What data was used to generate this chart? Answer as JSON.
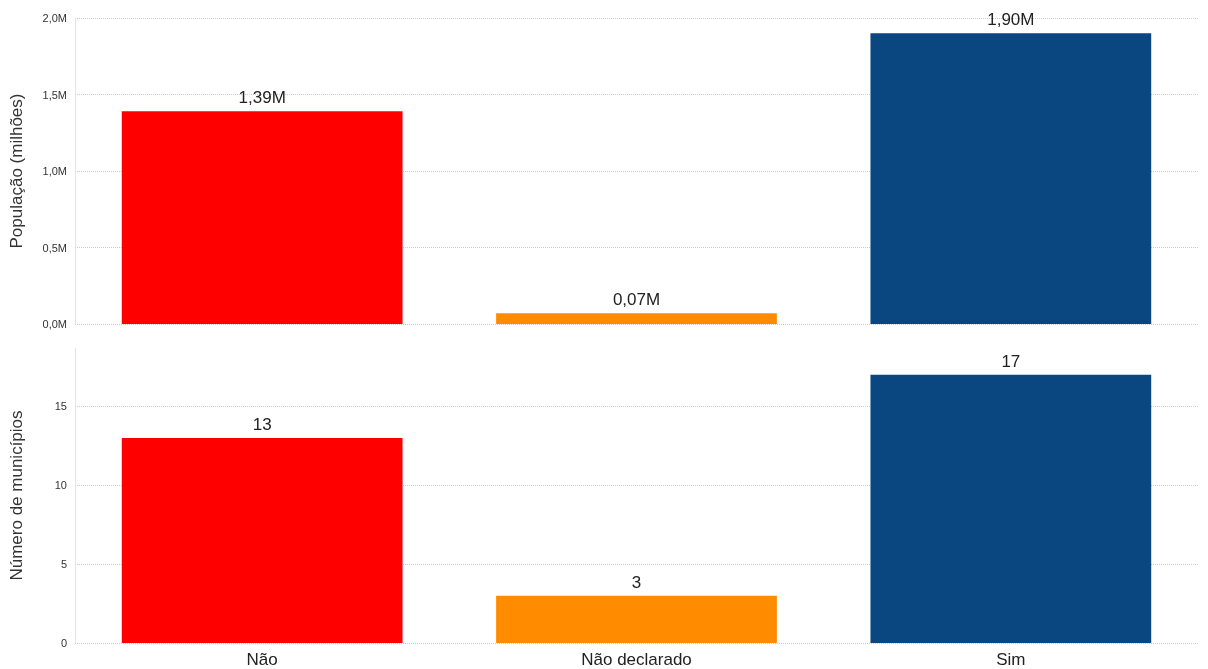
{
  "chart_data": [
    {
      "type": "bar",
      "ylabel": "População (milhões)",
      "categories": [
        null,
        null,
        null
      ],
      "values": [
        1.39,
        0.07,
        1.9
      ],
      "colors": [
        "#ff0000",
        "#ff8c00",
        "#0a4780"
      ],
      "value_labels": [
        "1,39M",
        "0,07M",
        "1,90M"
      ],
      "ylim": [
        0,
        2.0
      ],
      "yticks": [
        {
          "value": 0,
          "label": "0,0M"
        },
        {
          "value": 0.5,
          "label": "0,5M"
        },
        {
          "value": 1.0,
          "label": "1,0M"
        },
        {
          "value": 1.5,
          "label": "1,5M"
        },
        {
          "value": 2.0,
          "label": "2,0M"
        }
      ],
      "grid": "y",
      "tick_labels": "y"
    },
    {
      "type": "bar",
      "ylabel": "Número de municípios",
      "categories": [
        "Não",
        "Não declarado",
        "Sim"
      ],
      "values": [
        13,
        3,
        17
      ],
      "colors": [
        "#ff0000",
        "#ff8c00",
        "#0a4780"
      ],
      "data_labels": true,
      "ylim": [
        0,
        18.7
      ],
      "yticks": [
        0,
        5,
        10,
        15
      ],
      "grid": "y"
    }
  ]
}
